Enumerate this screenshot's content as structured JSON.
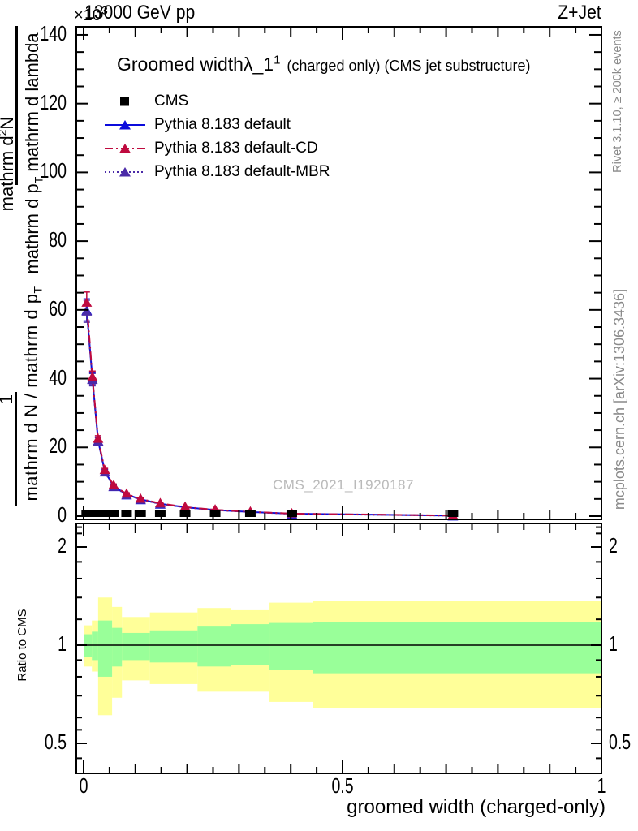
{
  "header": {
    "scale_exponent_base": "×10",
    "scale_exponent_power": "3",
    "beam": "13000 GeV pp",
    "process": "Z+Jet"
  },
  "title": {
    "main": "Groomed width",
    "symbol": "λ_1",
    "symbol_sup": "1",
    "qualifier": "(charged only) (CMS jet substructure)"
  },
  "legend": {
    "entries": [
      {
        "label": "CMS",
        "marker": "square",
        "line": "none",
        "color": "#000000"
      },
      {
        "label": "Pythia 8.183 default",
        "marker": "triangle",
        "line": "solid",
        "color": "#0b0bdc"
      },
      {
        "label": "Pythia 8.183 default-CD",
        "marker": "triangle",
        "line": "dashdot",
        "color": "#bf0a3f"
      },
      {
        "label": "Pythia 8.183 default-MBR",
        "marker": "triangle",
        "line": "dotted",
        "color": "#4b2ba8"
      }
    ]
  },
  "watermark": "CMS_2021_I1920187",
  "sidenotes": {
    "upper": "Rivet 3.1.10, ≥ 200k events",
    "lower": "mcplots.cern.ch [arXiv:1306.3436]"
  },
  "ylabel": {
    "frac1_num_pre": "mathrm d",
    "frac1_num_sup": "2",
    "frac1_num_post": "N",
    "frac1_den": [
      {
        "t": "mathrm d p"
      },
      {
        "sub": "T"
      },
      {
        "t": " mathrm d lambda"
      }
    ],
    "frac2_num": "1",
    "frac2_den": [
      {
        "t": "mathrm d N / mathrm d p"
      },
      {
        "sub": "T"
      }
    ]
  },
  "axis": {
    "x_label": "groomed width (charged-only)",
    "ratio_label": "Ratio to CMS",
    "x_ticks": [
      {
        "v": 0,
        "label": "0"
      },
      {
        "v": 0.5,
        "label": "0.5"
      },
      {
        "v": 1,
        "label": "1"
      }
    ],
    "y_ticks": [
      0,
      20,
      40,
      60,
      80,
      100,
      120,
      140
    ],
    "ratio_ticks": [
      {
        "v": 2,
        "label": "2"
      },
      {
        "v": 1,
        "label": "1"
      },
      {
        "v": 0.5,
        "label": "0.5"
      }
    ]
  },
  "chart_data": {
    "type": "line",
    "x": [
      0.006,
      0.017,
      0.028,
      0.041,
      0.058,
      0.083,
      0.11,
      0.148,
      0.196,
      0.254,
      0.322,
      0.402,
      0.713
    ],
    "series": [
      {
        "name": "Pythia 8.183 default",
        "color": "#0b0bdc",
        "dash": "solid",
        "values": [
          60,
          40,
          22,
          13,
          8.7,
          6.3,
          4.9,
          3.6,
          2.6,
          1.8,
          1.2,
          0.7,
          0.15
        ]
      },
      {
        "name": "Pythia 8.183 default-MBR",
        "color": "#4b2ba8",
        "dash": "dotted",
        "values": [
          59.6,
          39.7,
          21.8,
          12.8,
          8.6,
          6.2,
          4.85,
          3.55,
          2.55,
          1.77,
          1.18,
          0.68,
          0.14
        ]
      },
      {
        "name": "Pythia 8.183 default-CD",
        "color": "#bf0a3f",
        "dash": "dashdot",
        "values": [
          62,
          40.4,
          22.4,
          13.3,
          8.9,
          6.45,
          5.0,
          3.7,
          2.65,
          1.85,
          1.25,
          0.73,
          0.17
        ]
      }
    ],
    "errors": [
      3.2,
      1.8,
      1.0,
      0.6,
      0.45,
      0.35,
      0.3,
      0.25,
      0.2,
      0.15,
      0.12,
      0.1,
      0.1
    ],
    "cms_data": {
      "color": "#000000",
      "marker": "square"
    },
    "y_range": [
      0,
      142
    ],
    "y_major_step": 20,
    "y_minor_step": 5,
    "x_range": [
      0,
      1
    ],
    "x_minor_step": 0.05,
    "ratio": {
      "scale": "log2",
      "unity": 1,
      "minor_ticks": [
        2.3,
        2.2,
        1.8,
        1.6,
        1.4,
        1.2,
        0.9,
        0.8,
        0.7,
        0.6,
        0.55,
        0.45
      ],
      "colors": {
        "outer": "#ffff99",
        "inner": "#99ff99"
      },
      "bands": [
        {
          "x0": 0.0,
          "x1": 0.016,
          "outer_lo": 0.86,
          "outer_hi": 1.15,
          "inner_lo": 0.92,
          "inner_hi": 1.08
        },
        {
          "x0": 0.016,
          "x1": 0.028,
          "outer_lo": 0.83,
          "outer_hi": 1.19,
          "inner_lo": 0.9,
          "inner_hi": 1.1
        },
        {
          "x0": 0.028,
          "x1": 0.055,
          "outer_lo": 0.61,
          "outer_hi": 1.4,
          "inner_lo": 0.8,
          "inner_hi": 1.19
        },
        {
          "x0": 0.055,
          "x1": 0.074,
          "outer_lo": 0.69,
          "outer_hi": 1.31,
          "inner_lo": 0.86,
          "inner_hi": 1.13
        },
        {
          "x0": 0.074,
          "x1": 0.128,
          "outer_lo": 0.78,
          "outer_hi": 1.22,
          "inner_lo": 0.9,
          "inner_hi": 1.09
        },
        {
          "x0": 0.128,
          "x1": 0.22,
          "outer_lo": 0.76,
          "outer_hi": 1.26,
          "inner_lo": 0.885,
          "inner_hi": 1.11
        },
        {
          "x0": 0.22,
          "x1": 0.285,
          "outer_lo": 0.72,
          "outer_hi": 1.3,
          "inner_lo": 0.86,
          "inner_hi": 1.14
        },
        {
          "x0": 0.285,
          "x1": 0.359,
          "outer_lo": 0.72,
          "outer_hi": 1.28,
          "inner_lo": 0.87,
          "inner_hi": 1.16
        },
        {
          "x0": 0.359,
          "x1": 0.443,
          "outer_lo": 0.67,
          "outer_hi": 1.35,
          "inner_lo": 0.84,
          "inner_hi": 1.17
        },
        {
          "x0": 0.443,
          "x1": 1.0,
          "outer_lo": 0.64,
          "outer_hi": 1.37,
          "inner_lo": 0.82,
          "inner_hi": 1.18
        }
      ]
    }
  }
}
